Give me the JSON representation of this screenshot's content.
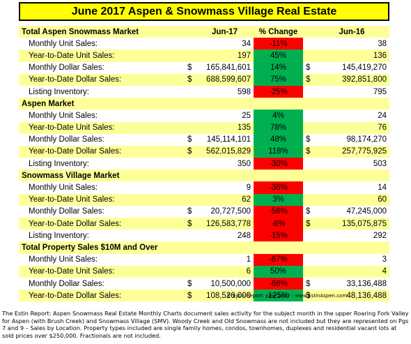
{
  "title": "June 2017 Aspen & Snowmass Village Real Estate",
  "columns": {
    "current": "Jun-17",
    "change": "% Change",
    "prior": "Jun-16"
  },
  "sections": [
    {
      "name": "Total Aspen Snowmass Market",
      "rows": [
        {
          "label": "Monthly Unit Sales:",
          "cur_dollar": "",
          "cur": "34",
          "chg": "-11%",
          "chg_type": "neg",
          "prior_dollar": "",
          "prior": "38"
        },
        {
          "label": "Year-to-Date Unit Sales:",
          "cur_dollar": "",
          "cur": "197",
          "chg": "45%",
          "chg_type": "pos",
          "prior_dollar": "",
          "prior": "136"
        },
        {
          "label": "Monthly Dollar Sales:",
          "cur_dollar": "$",
          "cur": "165,841,601",
          "chg": "14%",
          "chg_type": "pos",
          "prior_dollar": "$",
          "prior": "145,419,270"
        },
        {
          "label": "Year-to-Date Dollar Sales:",
          "cur_dollar": "$",
          "cur": "688,599,607",
          "chg": "75%",
          "chg_type": "pos",
          "prior_dollar": "$",
          "prior": "392,851,800"
        },
        {
          "label": "Listing Inventory:",
          "cur_dollar": "",
          "cur": "598",
          "chg": "-25%",
          "chg_type": "neg",
          "prior_dollar": "",
          "prior": "795"
        }
      ]
    },
    {
      "name": "Aspen Market",
      "rows": [
        {
          "label": "Monthly Unit Sales:",
          "cur_dollar": "",
          "cur": "25",
          "chg": "4%",
          "chg_type": "pos",
          "prior_dollar": "",
          "prior": "24"
        },
        {
          "label": "Year-to-Date Unit Sales:",
          "cur_dollar": "",
          "cur": "135",
          "chg": "78%",
          "chg_type": "pos",
          "prior_dollar": "",
          "prior": "76"
        },
        {
          "label": "Monthly Dollar Sales:",
          "cur_dollar": "$",
          "cur": "145,114,101",
          "chg": "48%",
          "chg_type": "pos",
          "prior_dollar": "$",
          "prior": "98,174,270"
        },
        {
          "label": "Year-to-Date Dollar Sales:",
          "cur_dollar": "$",
          "cur": "562,015,829",
          "chg": "118%",
          "chg_type": "pos",
          "prior_dollar": "$",
          "prior": "257,775,925"
        },
        {
          "label": "Listing Inventory:",
          "cur_dollar": "",
          "cur": "350",
          "chg": "-30%",
          "chg_type": "neg",
          "prior_dollar": "",
          "prior": "503"
        }
      ]
    },
    {
      "name": "Snowmass Village Market",
      "rows": [
        {
          "label": "Monthly Unit Sales:",
          "cur_dollar": "",
          "cur": "9",
          "chg": "-36%",
          "chg_type": "neg",
          "prior_dollar": "",
          "prior": "14"
        },
        {
          "label": "Year-to-Date Unit Sales:",
          "cur_dollar": "",
          "cur": "62",
          "chg": "3%",
          "chg_type": "pos",
          "prior_dollar": "",
          "prior": "60"
        },
        {
          "label": "Monthly Dollar Sales:",
          "cur_dollar": "$",
          "cur": "20,727,500",
          "chg": "-56%",
          "chg_type": "neg",
          "prior_dollar": "$",
          "prior": "47,245,000"
        },
        {
          "label": "Year-to-Date Dollar Sales:",
          "cur_dollar": "$",
          "cur": "126,583,778",
          "chg": "-6%",
          "chg_type": "neg",
          "prior_dollar": "$",
          "prior": "135,075,875"
        },
        {
          "label": "Listing Inventory:",
          "cur_dollar": "",
          "cur": "248",
          "chg": "-15%",
          "chg_type": "neg",
          "prior_dollar": "",
          "prior": "292"
        }
      ]
    },
    {
      "name": "Total Property Sales $10M and Over",
      "rows": [
        {
          "label": "Monthly Unit Sales:",
          "cur_dollar": "",
          "cur": "1",
          "chg": "-67%",
          "chg_type": "neg",
          "prior_dollar": "",
          "prior": "3"
        },
        {
          "label": "Year-to-Date Unit Sales:",
          "cur_dollar": "",
          "cur": "6",
          "chg": "50%",
          "chg_type": "pos",
          "prior_dollar": "",
          "prior": "4"
        },
        {
          "label": "Monthly Dollar Sales:",
          "cur_dollar": "$",
          "cur": "10,500,000",
          "chg": "-68%",
          "chg_type": "neg",
          "prior_dollar": "$",
          "prior": "33,136,488"
        },
        {
          "label": "Year-to-Date Dollar Sales:",
          "cur_dollar": "$",
          "cur": "108,526,000",
          "chg": "125%",
          "chg_type": "pos",
          "prior_dollar": "$",
          "prior": "48,136,488"
        }
      ]
    }
  ],
  "watermark": "© Estin Report: June 2017 : www.EstinAspen.com",
  "footnote": "The Estin Report: Aspen Snowmass Real Estate Monthly Charts document sales activity for the subject month in the upper Roaring Fork Valley for Aspen (with Brush Creek) and Snowmass Village (SMV). Woody Creek and Old Snowmass are not included but they are represented on Pgs 7 and 9 – Sales by Location. Property types included are single family homes, condos, townhomes, duplexes and residential vacant lots at sold prices over $250,000. Fractionals are not included.",
  "colors": {
    "title_bg": "#ffff00",
    "row_yellow": "#ffff99",
    "negative": "#ff0000",
    "positive": "#00b050"
  }
}
